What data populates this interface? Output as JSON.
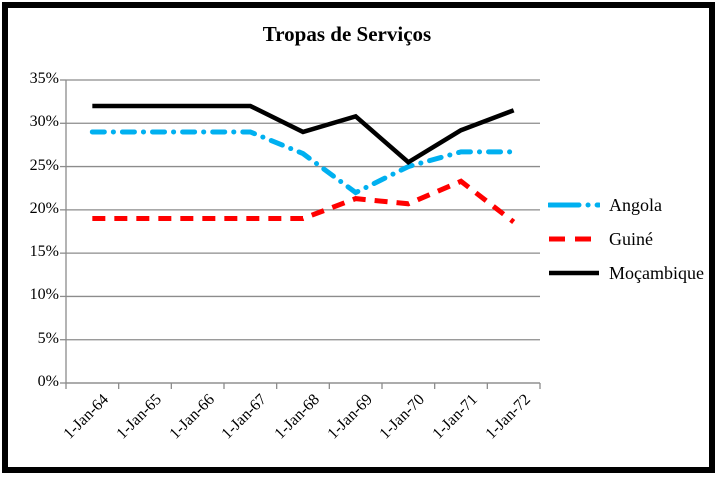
{
  "chart_data": {
    "type": "line",
    "title": "Tropas de Serviços",
    "categories": [
      "1-Jan-64",
      "1-Jan-65",
      "1-Jan-66",
      "1-Jan-67",
      "1-Jan-68",
      "1-Jan-69",
      "1-Jan-70",
      "1-Jan-71",
      "1-Jan-72"
    ],
    "y_axis": {
      "min": 0,
      "max": 35,
      "step": 5,
      "tick_labels": [
        "0%",
        "5%",
        "10%",
        "15%",
        "20%",
        "25%",
        "30%",
        "35%"
      ]
    },
    "series": [
      {
        "name": "Angola",
        "color": "#00B0F0",
        "line_style": "dash-dot",
        "values": [
          29,
          29,
          29,
          29,
          26.5,
          22,
          25,
          26.7,
          26.7
        ]
      },
      {
        "name": "Guiné",
        "color": "#FF0000",
        "line_style": "dashed",
        "values": [
          19,
          19,
          19,
          19,
          19,
          21.3,
          20.7,
          23.3,
          18.6
        ]
      },
      {
        "name": "Moçambique",
        "color": "#000000",
        "line_style": "solid",
        "values": [
          32,
          32,
          32,
          32,
          29,
          30.8,
          25.5,
          29.2,
          31.5
        ]
      }
    ],
    "legend_position": "right",
    "grid": "horizontal",
    "gridline_color": "#8C8C8C",
    "background_color": "#FFFFFF",
    "border_color": "#000000"
  }
}
